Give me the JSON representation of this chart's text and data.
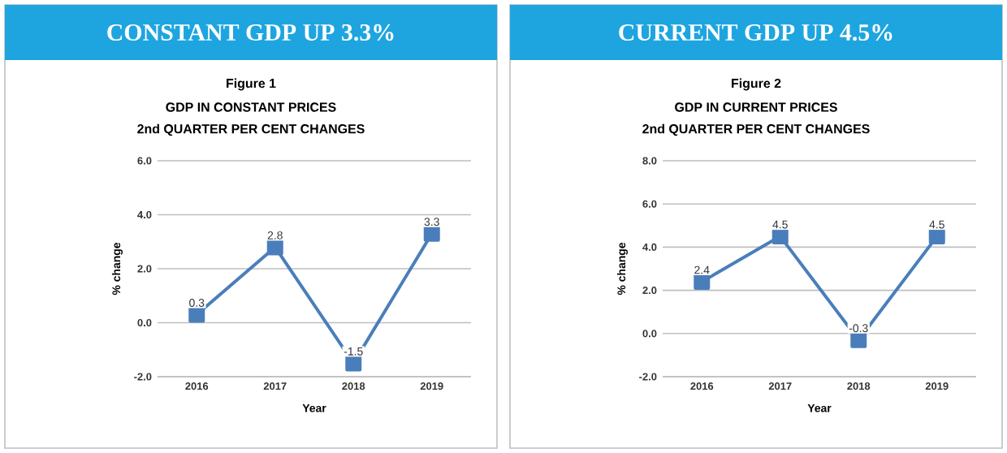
{
  "chart_data": [
    {
      "type": "line",
      "title": "CONSTANT GDP UP 3.3%",
      "subtitle": "Figure 1",
      "annotations": [
        "GDP IN CONSTANT PRICES",
        "2nd QUARTER PER CENT CHANGES"
      ],
      "xlabel": "Year",
      "ylabel": "% change",
      "categories": [
        "2016",
        "2017",
        "2018",
        "2019"
      ],
      "series": [
        {
          "color": "#4a7ebb",
          "values": [
            0.3,
            2.8,
            -1.5,
            3.3
          ]
        }
      ],
      "ylim": [
        -2,
        6
      ],
      "yticks": [
        {
          "value": -2,
          "label": "-2.0"
        },
        {
          "value": 0,
          "label": "0.0"
        },
        {
          "value": 2,
          "label": "2.0"
        },
        {
          "value": 4,
          "label": "4.0"
        },
        {
          "value": 6,
          "label": "6.0"
        }
      ],
      "grid": "y",
      "marker": "square",
      "line_style": "solid",
      "data_labels": true
    },
    {
      "type": "line",
      "title": "CURRENT GDP UP 4.5%",
      "subtitle": "Figure 2",
      "annotations": [
        "GDP IN CURRENT PRICES",
        "2nd QUARTER PER CENT CHANGES"
      ],
      "xlabel": "Year",
      "ylabel": "% change",
      "categories": [
        "2016",
        "2017",
        "2018",
        "2019"
      ],
      "series": [
        {
          "color": "#4a7ebb",
          "values": [
            2.4,
            4.5,
            -0.3,
            4.5
          ]
        }
      ],
      "ylim": [
        -2,
        8
      ],
      "yticks": [
        {
          "value": -2,
          "label": "-2.0"
        },
        {
          "value": 0,
          "label": "0.0"
        },
        {
          "value": 2,
          "label": "2.0"
        },
        {
          "value": 4,
          "label": "4.0"
        },
        {
          "value": 6,
          "label": "6.0"
        },
        {
          "value": 8,
          "label": "8.0"
        }
      ],
      "grid": "y",
      "marker": "square",
      "line_style": "solid",
      "data_labels": true
    }
  ]
}
